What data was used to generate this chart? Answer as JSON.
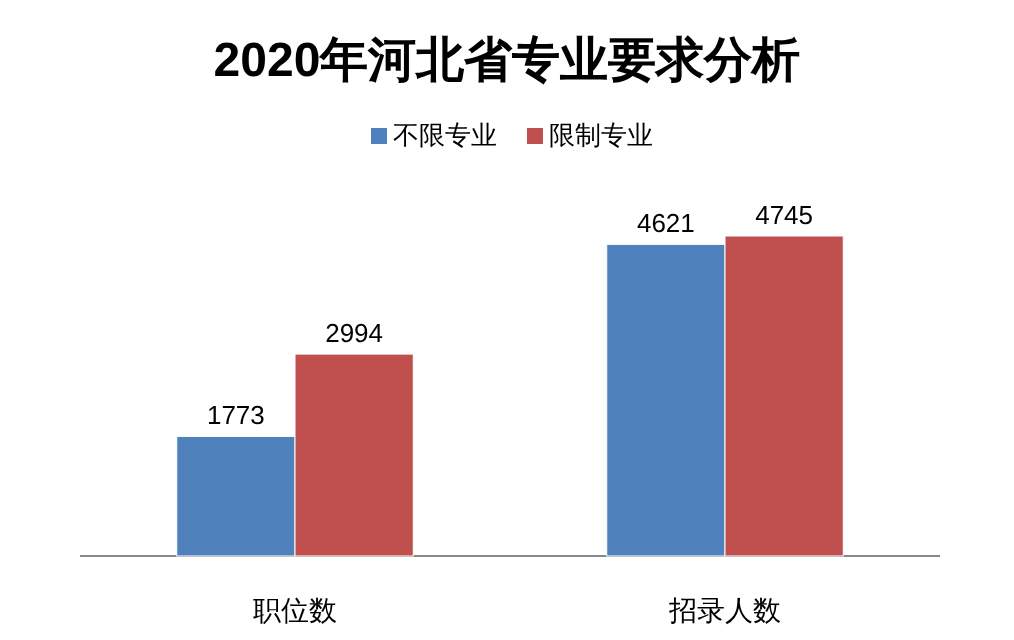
{
  "chart_data": {
    "type": "bar",
    "title": "2020年河北省专业要求分析",
    "categories": [
      "职位数",
      "招录人数"
    ],
    "series": [
      {
        "name": "不限专业",
        "color": "#4f81bd",
        "values": [
          1773,
          4621
        ]
      },
      {
        "name": "限制专业",
        "color": "#c0504d",
        "values": [
          2994,
          4745
        ]
      }
    ],
    "data_labels": true,
    "legend": "top"
  }
}
